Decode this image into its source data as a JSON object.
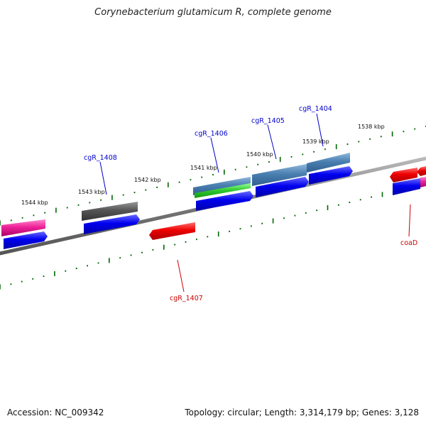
{
  "title": "Corynebacterium glutamicum R, complete genome",
  "footer": {
    "accession": "Accession: NC_009342",
    "topology": "Topology: circular; Length: 3,314,179 bp; Genes: 3,128"
  },
  "kbp_labels": [
    "1544 kbp",
    "1543 kbp",
    "1542 kbp",
    "1541 kbp",
    "1540 kbp",
    "1539 kbp",
    "1538 kbp"
  ],
  "gene_labels": {
    "cgR_1408": "cgR_1408",
    "cgR_1406": "cgR_1406",
    "cgR_1405": "cgR_1405",
    "cgR_1404": "cgR_1404",
    "cgR_1407": "cgR_1407",
    "coaD": "coaD"
  },
  "colors": {
    "label_blue": "#0000cc",
    "label_red": "#cc0000",
    "tick_green": "#006600",
    "cds_blue": "#0000ee",
    "cds_red": "#ee0000",
    "cds_pink": "#ee2299",
    "cds_gray": "#555555",
    "cds_steel": "#4a7fb0",
    "cds_green": "#33cc33",
    "backbone": "#777777"
  }
}
